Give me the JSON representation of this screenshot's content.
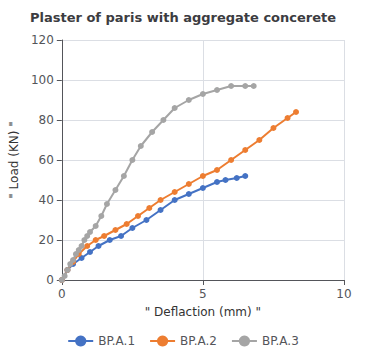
{
  "chart_data": {
    "type": "line",
    "title": "Plaster of paris with aggregate concerete",
    "xlabel": "\" Deflaction (mm) \"",
    "ylabel": "\" Load (KN) \"",
    "xlim": [
      0,
      10
    ],
    "ylim": [
      0,
      120
    ],
    "xticks": [
      0,
      5,
      10
    ],
    "yticks": [
      0,
      20,
      40,
      60,
      80,
      100,
      120
    ],
    "grid": true,
    "legend": "bottom",
    "marker": "circle",
    "series": [
      {
        "name": "BP.A.1",
        "color": "#4472C4",
        "x": [
          0,
          0.2,
          0.4,
          0.7,
          1.0,
          1.3,
          1.7,
          2.1,
          2.5,
          3.0,
          3.5,
          4.0,
          4.5,
          5.0,
          5.5,
          5.8,
          6.2,
          6.5
        ],
        "values": [
          0,
          5,
          8,
          11,
          14,
          17,
          20,
          22,
          26,
          30,
          35,
          40,
          43,
          46,
          49,
          50,
          51,
          52
        ]
      },
      {
        "name": "BP.A.2",
        "color": "#ED7D31",
        "x": [
          0,
          0.2,
          0.4,
          0.6,
          0.9,
          1.2,
          1.5,
          1.9,
          2.3,
          2.7,
          3.1,
          3.5,
          4.0,
          4.5,
          5.0,
          5.5,
          6.0,
          6.5,
          7.0,
          7.5,
          8.0,
          8.3
        ],
        "values": [
          0,
          5,
          9,
          13,
          17,
          20,
          22,
          25,
          28,
          32,
          36,
          40,
          44,
          48,
          52,
          55,
          60,
          65,
          70,
          76,
          81,
          84
        ]
      },
      {
        "name": "BP.A.3",
        "color": "#A5A5A5",
        "x": [
          0,
          0.1,
          0.2,
          0.3,
          0.4,
          0.5,
          0.6,
          0.7,
          0.8,
          0.9,
          1.0,
          1.2,
          1.4,
          1.6,
          1.9,
          2.2,
          2.5,
          2.8,
          3.2,
          3.6,
          4.0,
          4.5,
          5.0,
          5.5,
          6.0,
          6.5,
          6.8
        ],
        "values": [
          0,
          2,
          5,
          8,
          10,
          13,
          15,
          17,
          20,
          22,
          24,
          27,
          32,
          38,
          45,
          52,
          60,
          67,
          74,
          80,
          86,
          90,
          93,
          95,
          97,
          97,
          97
        ]
      }
    ]
  }
}
